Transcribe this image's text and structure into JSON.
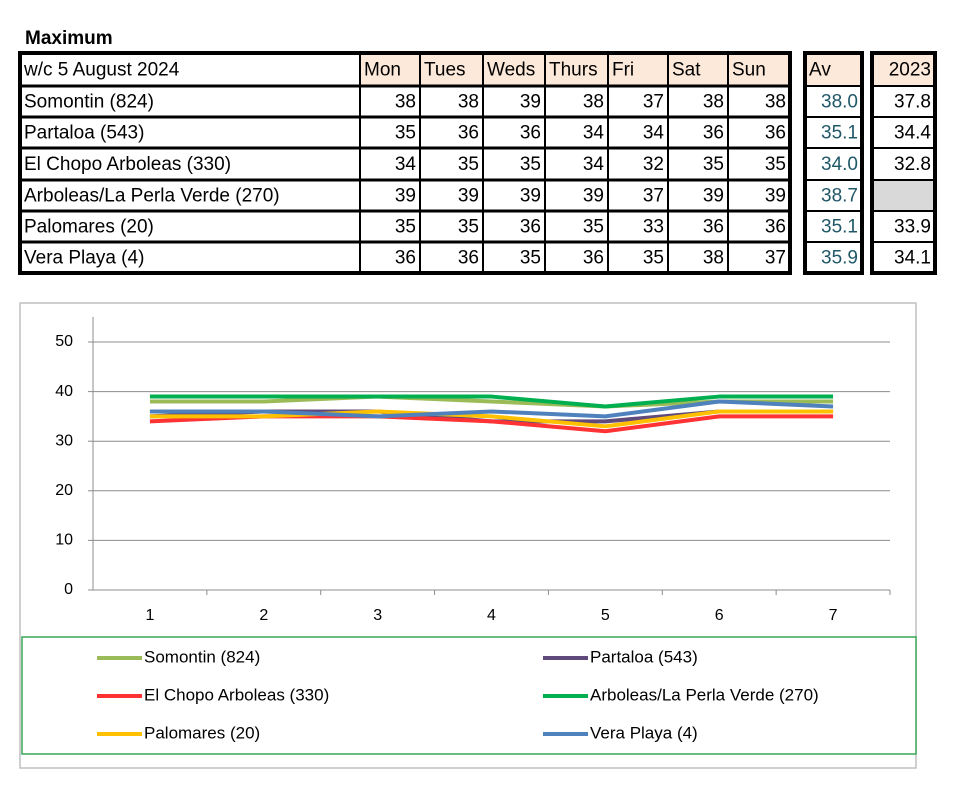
{
  "title": "Maximum",
  "table": {
    "header": [
      "w/c  5 August 2024",
      "Mon",
      "Tues",
      "Weds",
      "Thurs",
      "Fri",
      "Sat",
      "Sun",
      "Av",
      "2023"
    ],
    "rows": [
      [
        "Somontin (824)",
        "38",
        "38",
        "39",
        "38",
        "37",
        "38",
        "38",
        "38.0",
        "37.8"
      ],
      [
        "Partaloa (543)",
        "35",
        "36",
        "36",
        "34",
        "34",
        "36",
        "36",
        "35.1",
        "34.4"
      ],
      [
        "El Chopo  Arboleas (330)",
        "34",
        "35",
        "35",
        "34",
        "32",
        "35",
        "35",
        "34.0",
        "32.8"
      ],
      [
        "Arboleas/La Perla Verde (270)",
        "39",
        "39",
        "39",
        "39",
        "37",
        "39",
        "39",
        "38.7",
        null
      ],
      [
        "Palomares (20)",
        "35",
        "35",
        "36",
        "35",
        "33",
        "36",
        "36",
        "35.1",
        "33.9"
      ],
      [
        "Vera Playa (4)",
        "36",
        "36",
        "35",
        "36",
        "35",
        "38",
        "37",
        "35.9",
        "34.1"
      ]
    ]
  },
  "chart_data": {
    "type": "line",
    "categories": [
      "1",
      "2",
      "3",
      "4",
      "5",
      "6",
      "7"
    ],
    "series": [
      {
        "name": "Somontin (824)",
        "color": "#9bbb59",
        "values": [
          38,
          38,
          39,
          38,
          37,
          38,
          38
        ]
      },
      {
        "name": "Partaloa (543)",
        "color": "#604a7b",
        "values": [
          35,
          36,
          36,
          34,
          34,
          36,
          36
        ]
      },
      {
        "name": "El Chopo  Arboleas (330)",
        "color": "#ff3333",
        "values": [
          34,
          35,
          35,
          34,
          32,
          35,
          35
        ]
      },
      {
        "name": "Arboleas/La Perla Verde (270)",
        "color": "#00b050",
        "values": [
          39,
          39,
          39,
          39,
          37,
          39,
          39
        ]
      },
      {
        "name": "Palomares (20)",
        "color": "#ffc000",
        "values": [
          35,
          35,
          36,
          35,
          33,
          36,
          36
        ]
      },
      {
        "name": "Vera Playa (4)",
        "color": "#4f81bd",
        "values": [
          36,
          36,
          35,
          36,
          35,
          38,
          37
        ]
      }
    ],
    "ylim": [
      0,
      50
    ],
    "yticks": [
      0,
      10,
      20,
      30,
      40,
      50
    ],
    "grid": true
  }
}
